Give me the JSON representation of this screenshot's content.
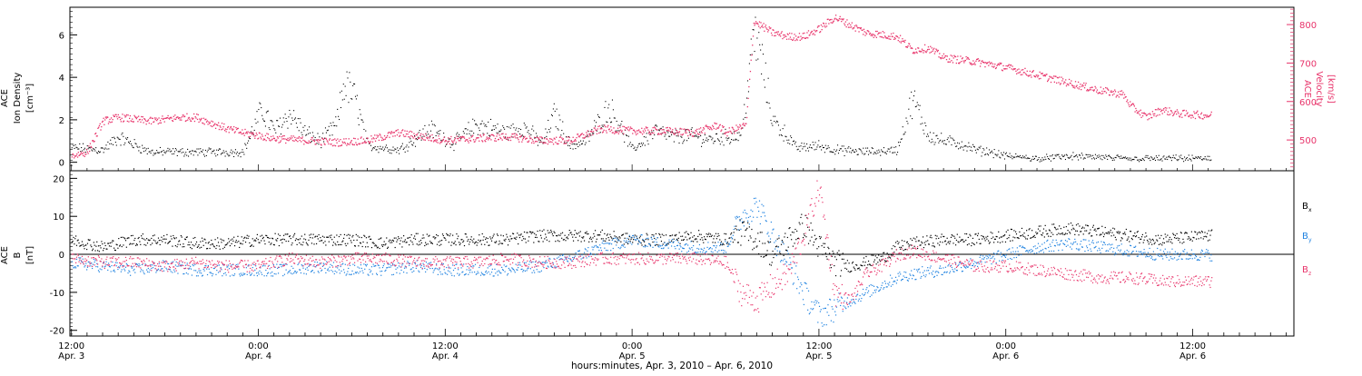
{
  "colors": {
    "density": "#000000",
    "velocity": "#e8336a",
    "bx": "#000000",
    "by": "#1f82e0",
    "bz": "#e8336a"
  },
  "x_axis": {
    "title": "hours:minutes, Apr.  3, 2010 – Apr.  6, 2010",
    "ticks": [
      {
        "h": 12,
        "time": "12:00",
        "date": "Apr. 3"
      },
      {
        "h": 24,
        "time": "0:00",
        "date": "Apr. 4"
      },
      {
        "h": 36,
        "time": "12:00",
        "date": "Apr. 4"
      },
      {
        "h": 48,
        "time": "0:00",
        "date": "Apr. 5"
      },
      {
        "h": 60,
        "time": "12:00",
        "date": "Apr. 5"
      },
      {
        "h": 72,
        "time": "0:00",
        "date": "Apr. 6"
      },
      {
        "h": 84,
        "time": "12:00",
        "date": "Apr. 6"
      }
    ]
  },
  "chart_data": [
    {
      "type": "scatter",
      "xlim_hours": [
        11.9,
        90.5
      ],
      "left_axis": {
        "label_lines": [
          "ACE",
          "Ion Density"
        ],
        "unit": "[cm⁻³]",
        "ylim": [
          -0.4,
          7.3
        ],
        "ticks": [
          0,
          2,
          4,
          6
        ]
      },
      "right_axis": {
        "label_lines": [
          "ACE",
          "Velocity"
        ],
        "unit": "[km/s]",
        "ylim": [
          420,
          845
        ],
        "ticks": [
          500,
          600,
          700,
          800
        ]
      },
      "series": [
        {
          "axis": "left",
          "color_key": "density",
          "points": [
            [
              12,
              0.7
            ],
            [
              14,
              0.6
            ],
            [
              15,
              1.2
            ],
            [
              17,
              0.5
            ],
            [
              20,
              0.5
            ],
            [
              23,
              0.5
            ],
            [
              24.2,
              2.5
            ],
            [
              25,
              1.5
            ],
            [
              26,
              2.3
            ],
            [
              27,
              1.4
            ],
            [
              28,
              1.0
            ],
            [
              29,
              1.8
            ],
            [
              29.5,
              3.8
            ],
            [
              30.2,
              3.0
            ],
            [
              31,
              0.8
            ],
            [
              33,
              0.6
            ],
            [
              35,
              1.6
            ],
            [
              36.5,
              0.9
            ],
            [
              38,
              1.8
            ],
            [
              40,
              1.4
            ],
            [
              41,
              1.7
            ],
            [
              42.2,
              0.9
            ],
            [
              43,
              2.3
            ],
            [
              44,
              0.8
            ],
            [
              45,
              1.0
            ],
            [
              46.5,
              2.6
            ],
            [
              47,
              2.0
            ],
            [
              48,
              0.6
            ],
            [
              49.5,
              1.5
            ],
            [
              50.5,
              1.2
            ],
            [
              51.5,
              1.3
            ],
            [
              53,
              1.1
            ],
            [
              54,
              1.2
            ],
            [
              55,
              1.3
            ],
            [
              55.8,
              6.0
            ],
            [
              56.3,
              4.8
            ],
            [
              57,
              2.0
            ],
            [
              58,
              1.2
            ],
            [
              58.5,
              0.7
            ],
            [
              60,
              0.8
            ],
            [
              61,
              0.6
            ],
            [
              63,
              0.5
            ],
            [
              65,
              0.6
            ],
            [
              66,
              3.0
            ],
            [
              67,
              1.3
            ],
            [
              68,
              1.0
            ],
            [
              69,
              0.9
            ],
            [
              70,
              0.6
            ],
            [
              71,
              0.5
            ],
            [
              72,
              0.3
            ],
            [
              74,
              0.2
            ],
            [
              76,
              0.3
            ],
            [
              80,
              0.2
            ],
            [
              85,
              0.2
            ]
          ]
        },
        {
          "axis": "right",
          "color_key": "velocity",
          "points": [
            [
              12,
              460
            ],
            [
              13,
              470
            ],
            [
              14,
              550
            ],
            [
              15,
              560
            ],
            [
              17,
              550
            ],
            [
              19,
              560
            ],
            [
              20,
              560
            ],
            [
              22,
              530
            ],
            [
              23,
              520
            ],
            [
              25,
              505
            ],
            [
              27,
              500
            ],
            [
              29,
              495
            ],
            [
              31,
              500
            ],
            [
              33,
              520
            ],
            [
              36,
              500
            ],
            [
              40,
              510
            ],
            [
              42,
              500
            ],
            [
              44,
              500
            ],
            [
              46,
              530
            ],
            [
              48,
              525
            ],
            [
              50,
              525
            ],
            [
              52,
              520
            ],
            [
              53.5,
              540
            ],
            [
              54,
              520
            ],
            [
              55.3,
              540
            ],
            [
              55.8,
              810
            ],
            [
              57,
              780
            ],
            [
              58,
              770
            ],
            [
              59,
              770
            ],
            [
              60,
              790
            ],
            [
              61,
              820
            ],
            [
              62,
              800
            ],
            [
              63,
              780
            ],
            [
              65,
              770
            ],
            [
              66,
              735
            ],
            [
              67,
              740
            ],
            [
              68,
              715
            ],
            [
              70,
              705
            ],
            [
              72,
              690
            ],
            [
              74,
              670
            ],
            [
              76,
              650
            ],
            [
              78,
              630
            ],
            [
              79.5,
              620
            ],
            [
              80,
              590
            ],
            [
              81,
              560
            ],
            [
              82,
              580
            ],
            [
              83,
              570
            ],
            [
              85,
              565
            ]
          ]
        }
      ]
    },
    {
      "type": "line",
      "xlim_hours": [
        11.9,
        90.5
      ],
      "left_axis": {
        "label_lines": [
          "ACE",
          "B"
        ],
        "unit": "[nT]",
        "ylim": [
          -21.5,
          22
        ],
        "ticks": [
          -20,
          -10,
          0,
          10,
          20
        ]
      },
      "legend": [
        {
          "label": "B",
          "sub": "x",
          "color_key": "bx"
        },
        {
          "label": "B",
          "sub": "y",
          "color_key": "by"
        },
        {
          "label": "B",
          "sub": "z",
          "color_key": "bz"
        }
      ],
      "series": [
        {
          "name": "Bx",
          "color_key": "bx",
          "points": [
            [
              12,
              4
            ],
            [
              14,
              2
            ],
            [
              16,
              4
            ],
            [
              18,
              4
            ],
            [
              20,
              3
            ],
            [
              22,
              3
            ],
            [
              24,
              4
            ],
            [
              26,
              4
            ],
            [
              28,
              4
            ],
            [
              30,
              4
            ],
            [
              32,
              3
            ],
            [
              34,
              4
            ],
            [
              36,
              4
            ],
            [
              38,
              4
            ],
            [
              40,
              4
            ],
            [
              42,
              5
            ],
            [
              44,
              5
            ],
            [
              46,
              5
            ],
            [
              48,
              4
            ],
            [
              50,
              4
            ],
            [
              52,
              5
            ],
            [
              54,
              4
            ],
            [
              55,
              6
            ],
            [
              56,
              4
            ],
            [
              57,
              0
            ],
            [
              58,
              4
            ],
            [
              59,
              8
            ],
            [
              60,
              2
            ],
            [
              61,
              -2
            ],
            [
              62,
              -3
            ],
            [
              63,
              -2
            ],
            [
              64,
              -1
            ],
            [
              65,
              2
            ],
            [
              66,
              3
            ],
            [
              68,
              4
            ],
            [
              70,
              4
            ],
            [
              72,
              5
            ],
            [
              74,
              6
            ],
            [
              76,
              7
            ],
            [
              78,
              6
            ],
            [
              80,
              5
            ],
            [
              82,
              4
            ],
            [
              85,
              5
            ]
          ]
        },
        {
          "name": "By",
          "color_key": "by",
          "points": [
            [
              12,
              -2
            ],
            [
              14,
              -3
            ],
            [
              16,
              -4
            ],
            [
              18,
              -3
            ],
            [
              20,
              -4
            ],
            [
              22,
              -4
            ],
            [
              24,
              -4
            ],
            [
              26,
              -4
            ],
            [
              28,
              -3
            ],
            [
              30,
              -4
            ],
            [
              32,
              -4
            ],
            [
              34,
              -3
            ],
            [
              36,
              -4
            ],
            [
              38,
              -4
            ],
            [
              40,
              -4
            ],
            [
              42,
              -3
            ],
            [
              44,
              -1
            ],
            [
              46,
              2
            ],
            [
              48,
              4
            ],
            [
              50,
              3
            ],
            [
              52,
              2
            ],
            [
              54,
              2
            ],
            [
              55,
              10
            ],
            [
              56,
              13
            ],
            [
              57,
              5
            ],
            [
              58,
              -2
            ],
            [
              59,
              -10
            ],
            [
              60,
              -16
            ],
            [
              61,
              -14
            ],
            [
              62,
              -12
            ],
            [
              63,
              -10
            ],
            [
              64,
              -8
            ],
            [
              65,
              -6
            ],
            [
              66,
              -5
            ],
            [
              68,
              -4
            ],
            [
              70,
              -2
            ],
            [
              72,
              0
            ],
            [
              74,
              2
            ],
            [
              76,
              3
            ],
            [
              78,
              2
            ],
            [
              80,
              1
            ],
            [
              82,
              0
            ],
            [
              85,
              0
            ]
          ]
        },
        {
          "name": "Bz",
          "color_key": "bz",
          "points": [
            [
              12,
              -1
            ],
            [
              14,
              -2
            ],
            [
              16,
              -2
            ],
            [
              18,
              -3
            ],
            [
              20,
              -2
            ],
            [
              22,
              -3
            ],
            [
              24,
              -3
            ],
            [
              26,
              -1
            ],
            [
              28,
              -2
            ],
            [
              30,
              -1
            ],
            [
              32,
              -1
            ],
            [
              34,
              -2
            ],
            [
              36,
              -2
            ],
            [
              38,
              -2
            ],
            [
              40,
              -1
            ],
            [
              42,
              -2
            ],
            [
              44,
              -2
            ],
            [
              46,
              -1
            ],
            [
              48,
              -1
            ],
            [
              50,
              -1
            ],
            [
              52,
              -1
            ],
            [
              54,
              -2
            ],
            [
              55,
              -10
            ],
            [
              56,
              -12
            ],
            [
              57,
              -8
            ],
            [
              58,
              -5
            ],
            [
              59,
              5
            ],
            [
              60,
              18
            ],
            [
              61,
              -10
            ],
            [
              62,
              -12
            ],
            [
              63,
              -5
            ],
            [
              64,
              -3
            ],
            [
              65,
              0
            ],
            [
              66,
              1
            ],
            [
              68,
              -1
            ],
            [
              70,
              -3
            ],
            [
              72,
              -3
            ],
            [
              74,
              -4
            ],
            [
              76,
              -5
            ],
            [
              78,
              -6
            ],
            [
              80,
              -6
            ],
            [
              82,
              -7
            ],
            [
              85,
              -7
            ]
          ]
        }
      ]
    }
  ]
}
